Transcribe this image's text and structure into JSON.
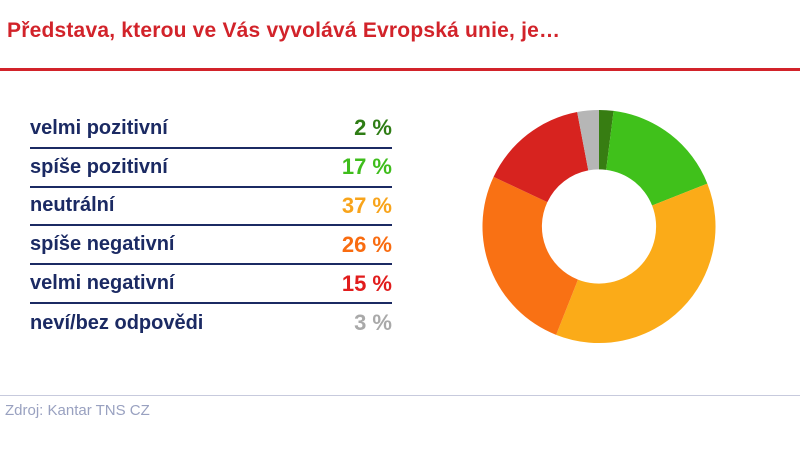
{
  "page": {
    "title": "Představa, kterou ve Vás vyvolává Evropská unie, je…",
    "source": "Zdroj: Kantar TNS CZ"
  },
  "theme": {
    "background": "#ffffff",
    "title_color": "#d2232a",
    "divider_color": "#d2232a",
    "label_color": "#1b2a63",
    "row_border_color": "#1b2a63",
    "footer_line_color": "#c7cadd",
    "footer_text_color": "#99a1c0"
  },
  "chart_data": {
    "type": "pie",
    "subtype": "donut",
    "title": "Představa, kterou ve Vás vyvolává Evropská unie, je…",
    "categories": [
      "velmi pozitivní",
      "spíše pozitivní",
      "neutrální",
      "spíše negativní",
      "velmi negativní",
      "neví/bez odpovědi"
    ],
    "values": [
      2,
      17,
      37,
      26,
      15,
      3
    ],
    "value_labels": [
      "2 %",
      "17 %",
      "37 %",
      "26 %",
      "15 %",
      "3 %"
    ],
    "unit": "%",
    "slice_colors": [
      "#377d12",
      "#40c11b",
      "#fbab18",
      "#f97114",
      "#d7231f",
      "#b6b6b6"
    ],
    "value_colors": [
      "#2f7d15",
      "#3fbd1c",
      "#f8a41b",
      "#f96c10",
      "#e11c1c",
      "#a9a9a9"
    ],
    "legend_position": "left",
    "start_angle_deg": 0,
    "direction": "clockwise",
    "inner_radius_ratio": 0.49,
    "source": "Zdroj: Kantar TNS CZ"
  }
}
